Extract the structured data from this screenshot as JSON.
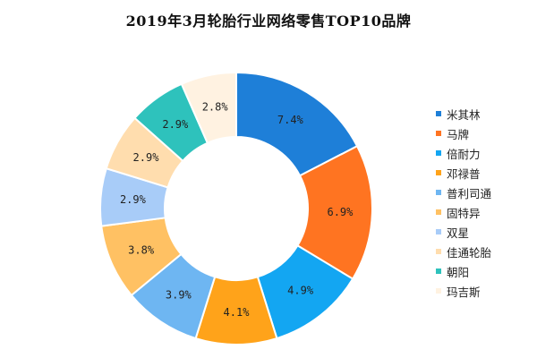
{
  "chart_data": {
    "type": "pie",
    "title": "2019年3月轮胎行业网络零售TOP10品牌",
    "donut": true,
    "legend_position": "right",
    "categories": [
      "米其林",
      "马牌",
      "倍耐力",
      "邓禄普",
      "普利司通",
      "固特异",
      "双星",
      "佳通轮胎",
      "朝阳",
      "玛吉斯"
    ],
    "values": [
      7.4,
      6.9,
      4.9,
      4.1,
      3.9,
      3.8,
      2.9,
      2.9,
      2.9,
      2.8
    ],
    "labels": [
      "7.4%",
      "6.9%",
      "4.9%",
      "4.1%",
      "3.9%",
      "3.8%",
      "2.9%",
      "2.9%",
      "2.9%",
      "2.8%"
    ],
    "colors": [
      "#1E7FD8",
      "#FF7421",
      "#13A6F2",
      "#FFA31A",
      "#6EB6F2",
      "#FFC163",
      "#A8CCF8",
      "#FFDDAE",
      "#2EC2BC",
      "#FFF2E1"
    ]
  }
}
